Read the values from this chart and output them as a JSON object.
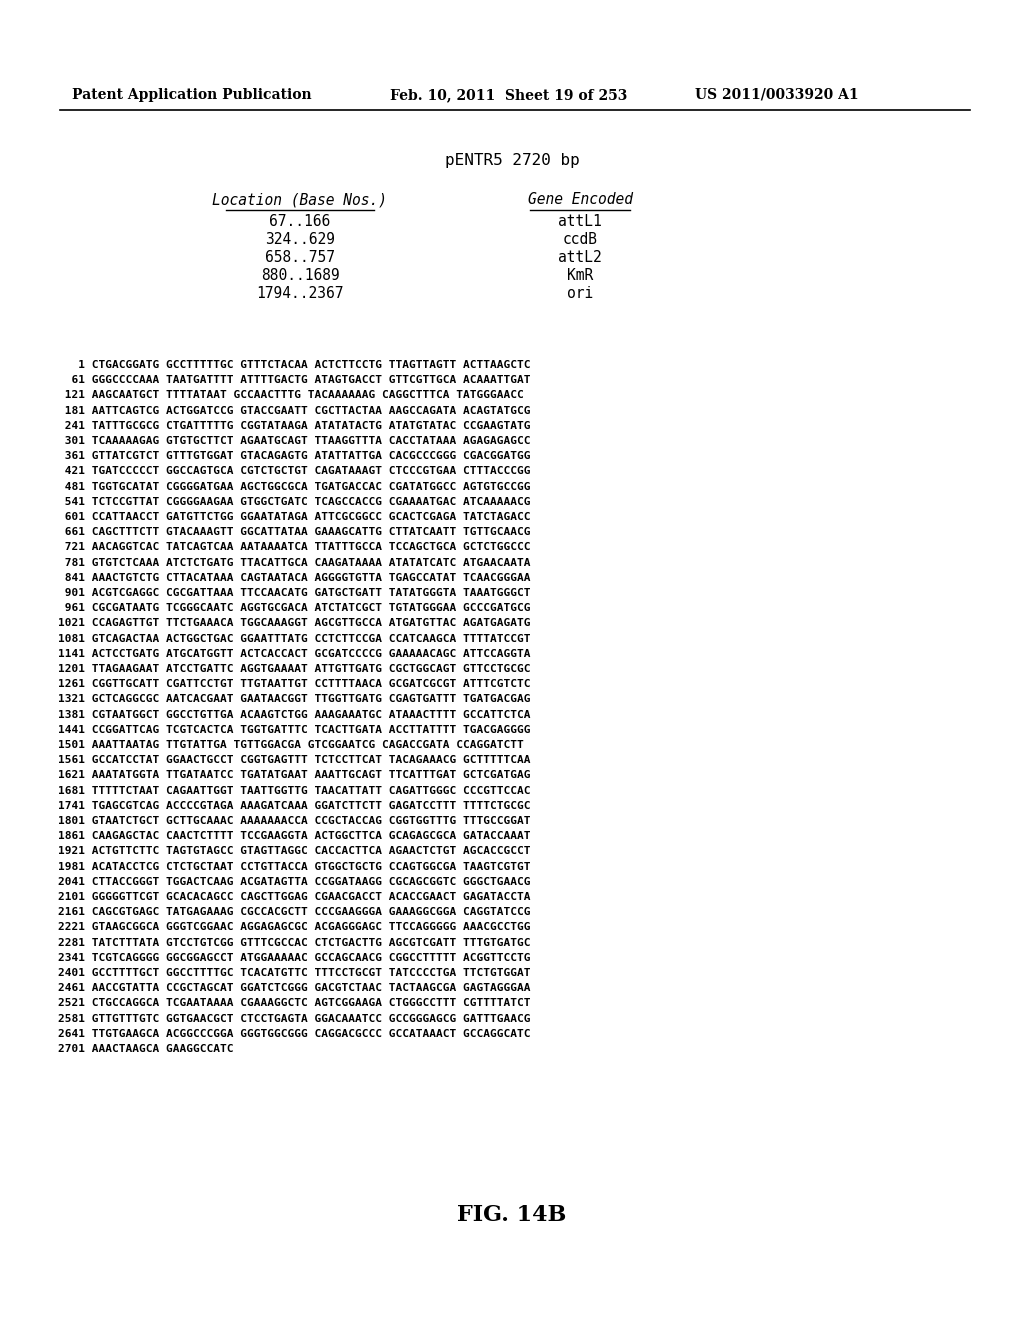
{
  "header_left": "Patent Application Publication",
  "header_mid": "Feb. 10, 2011  Sheet 19 of 253",
  "header_right": "US 2011/0033920 A1",
  "title": "pENTR5 2720 bp",
  "location_header": "Location (Base Nos.)",
  "gene_header": "Gene Encoded",
  "locations": [
    "67..166",
    "324..629",
    "658..757",
    "880..1689",
    "1794..2367"
  ],
  "genes": [
    "attL1",
    "ccdB",
    "attL2",
    "KmR",
    "ori"
  ],
  "seq_lines": [
    "   1 CTGACGGATG GCCTTTTTGC GTTTCTACAA ACTCTTCCTG TTAGTTAGTT ACTTAAGCTC",
    "  61 GGGCCCCAAA TAATGATTTT ATTTTGACTG ATAGTGACCT GTTCGTTGCA ACAAATTGAT",
    " 121 AAGCAATGCT TTTTATAAT GCCAACTTTG TACAAAAAAG CAGGCTTTCA TATGGGAACC",
    " 181 AATTCAGTCG ACTGGATCCG GTACCGAATT CGCTTACTAA AAGCCAGATA ACAGTATGCG",
    " 241 TATTTGCGCG CTGATTTTTG CGGTATAAGA ATATATACTG ATATGTATAC CCGAAGTATG",
    " 301 TCAAAAAGAG GTGTGCTTCT AGAATGCAGT TTAAGGTTTA CACCTATAAA AGAGAGAGCC",
    " 361 GTTATCGTCT GTTTGTGGAT GTACAGAGTG ATATTATTGA CACGCCCGGG CGACGGATGG",
    " 421 TGATCCCCCT GGCCAGTGCA CGTCTGCTGT CAGATAAAGT CTCCCGTGAA CTTTACCCGG",
    " 481 TGGTGCATAT CGGGGATGAA AGCTGGCGCA TGATGACCAC CGATATGGCC AGTGTGCCGG",
    " 541 TCTCCGTTAT CGGGGAAGAA GTGGCTGATC TCAGCCACCG CGAAAATGAC ATCAAAAACG",
    " 601 CCATTAACCT GATGTTCTGG GGAATATAGA ATTCGCGGCC GCACTCGAGA TATCTAGACC",
    " 661 CAGCTTTCTT GTACAAAGTT GGCATTATAA GAAAGCATTG CTTATCAATT TGTTGCAACG",
    " 721 AACAGGTCAC TATCAGTCAA AATAAAATCA TTATTTGCCA TCCAGCTGCA GCTCTGGCCC",
    " 781 GTGTCTCAAA ATCTCTGATG TTACATTGCA CAAGATAAAA ATATATCATC ATGAACAATA",
    " 841 AAACTGTCTG CTTACATAAA CAGTAATACA AGGGGTGTTA TGAGCCATAT TCAACGGGAA",
    " 901 ACGTCGAGGC CGCGATTAAA TTCCAACATG GATGCTGATT TATATGGGTA TAAATGGGCT",
    " 961 CGCGATAATG TCGGGCAATC AGGTGCGACA ATCTATCGCT TGTATGGGAA GCCCGATGCG",
    "1021 CCAGAGTTGT TTCTGAAACA TGGCAAAGGT AGCGTTGCCA ATGATGTTAC AGATGAGATG",
    "1081 GTCAGACTAA ACTGGCTGAC GGAATTTATG CCTCTTCCGA CCATCAAGCA TTTTATCCGT",
    "1141 ACTCCTGATG ATGCATGGTT ACTCACCACT GCGATCCCCG GAAAAACAGC ATTCCAGGTA",
    "1201 TTAGAAGAAT ATCCTGATTC AGGTGAAAAT ATTGTTGATG CGCTGGCAGT GTTCCTGCGC",
    "1261 CGGTTGCATT CGATTCCTGT TTGTAATTGT CCTTTTAACA GCGATCGCGT ATTTCGTCTC",
    "1321 GCTCAGGCGC AATCACGAAT GAATAACGGT TTGGTTGATG CGAGTGATTT TGATGACGAG",
    "1381 CGTAATGGCT GGCCTGTTGA ACAAGTCTGG AAAGAAATGC ATAAACTTTТ GCCATTCTCA",
    "1441 CCGGATTCAG TCGTCACTCA TGGTGATTTC TCACTTGATA ACCTTATТTT TGACGAGGGG",
    "1501 AAATTAATAG TTGTATTGA TGTTGGACGA GTCGGAATCG CAGACCGATA CCAGGATCTT",
    "1561 GCCATCCTAT GGAACTGCCT CGGTGAGTTT TCTCCTTCAT TACAGAAACG GCTTTTTCAA",
    "1621 AAATATGGTA TTGATAATCC TGATATGAAT AAATTGCAGT TTCATTTGAT GCTCGATGAG",
    "1681 TTTTTCTAAT CAGAATTGGT TAATTGGTTG TAACATTATT CAGATTGGGC CCCGTTCCAC",
    "1741 TGAGCGTCAG ACCCCGTAGA AAAGATCAAA GGATCTTCTT GAGATCCTTT TTTTCTGCGC",
    "1801 GTAATCTGCT GCTTGCAAAC AAAAAAACCA CCGCTACCAG CGGTGGTTTG TTTGCCGGAT",
    "1861 CAAGAGCTAC CAACTCTTTT TCCGAAGGTA ACTGGCTTCA GCAGAGCGCA GATACCAAAT",
    "1921 ACTGTTCTTC TAGTGTAGCC GTAGTTAGGC CACCACTTCA AGAACTCTGT AGCACCGCCT",
    "1981 ACATACCTCG CTCTGCTAAT CCTGTTACCA GTGGCTGCTG CCAGTGGCGA TAAGTCGTGT",
    "2041 CTTACCGGGT TGGACTCAAG ACGATAGTTA CCGGATAAGG CGCAGCGGTC GGGCTGAACG",
    "2101 GGGGGTTCGT GCACACAGCC CAGCTTGGAG CGAACGACCT ACACCGAACT GAGATACCTA",
    "2161 CAGCGTGAGC TATGAGAAAG CGCCACGCTT CCCGAAGGGA GAAAGGCGGA CAGGTATCCG",
    "2221 GTAAGCGGCA GGGTCGGAAC AGGAGAGCGC ACGAGGGAGC TTCCAGGGGG AAACGCCTGG",
    "2281 TATCTTTATA GTCCTGTCGG GTTTCGCCAC CTCTGACTTG AGCGTCGATT TTTGTGATGC",
    "2341 TCGTCAGGGG GGCGGAGCCT ATGGAAAAAC GCCAGCAACG CGGCCTTTTT ACGGTTCCTG",
    "2401 GCCTTTTGCT GGCCTTTTGC TCACATGTTC TTTCCTGCGT TATCCCCTGA TTCTGTGGAT",
    "2461 AACCGTATTA CCGCTAGCAT GGATCTCGGG GACGTCTAAC TACTAAGCGA GAGTAGGGAA",
    "2521 CTGCCAGGCA TCGAATAAAA CGAAAGGCTC AGTCGGAAGA CTGGGCCTTT CGTTTTATCT",
    "2581 GTTGTTTGTC GGTGAACGCT CTCCTGAGTA GGACAAATCC GCCGGGAGCG GATTTGAACG",
    "2641 TTGTGAAGCA ACGGCCCGGA GGGTGGCGGG CAGGACGCCC GCCATAAACT GCCAGGCATC",
    "2701 AAACTAAGCA GAAGGCCATC"
  ],
  "figure_label": "FIG. 14B",
  "bg_color": "#ffffff",
  "text_color": "#000000"
}
